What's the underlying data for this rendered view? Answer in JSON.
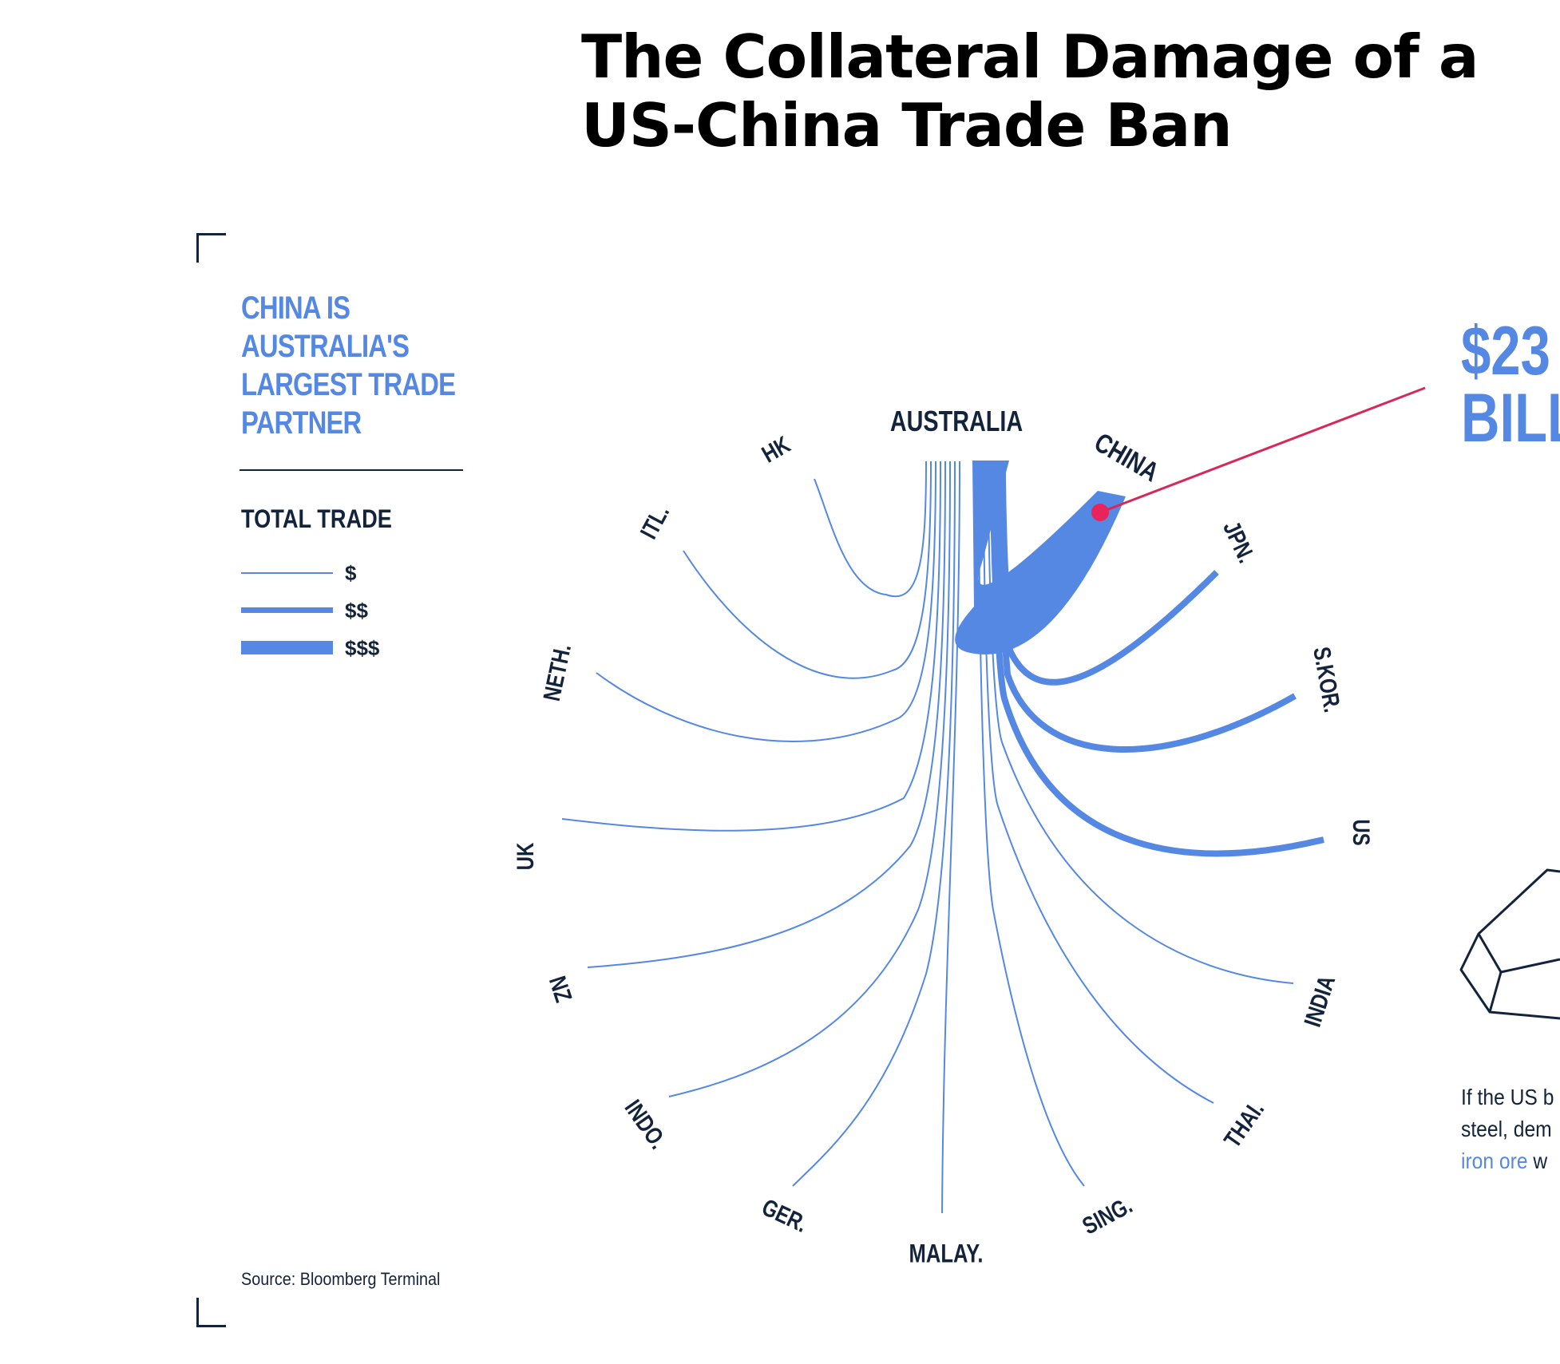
{
  "title": {
    "line1": "The Collateral Damage of a",
    "line2": "US-China Trade Ban"
  },
  "subhead": {
    "line1": "CHINA IS",
    "line2": "AUSTRALIA'S",
    "line3": "LARGEST TRADE",
    "line4": "PARTNER"
  },
  "legend": {
    "title": "TOTAL TRADE",
    "items": [
      {
        "label": "$",
        "level": 1
      },
      {
        "label": "$$",
        "level": 2
      },
      {
        "label": "$$$",
        "level": 3
      }
    ]
  },
  "source": "Source: Bloomberg Terminal",
  "callout": {
    "line1": "$23",
    "line2": "BILL"
  },
  "note": {
    "line1": "If the US b",
    "line2": "steel, dem",
    "highlight": "iron ore",
    "line3_rest": " w"
  },
  "colors": {
    "flow": "#5588e2",
    "text": "#14233c",
    "callout_line": "#d8285a"
  },
  "chart_data": {
    "type": "flow",
    "origin": "AUSTRALIA",
    "scale_note": "Relative total trade volume shown by stroke thickness ($ to $$$)",
    "partners": [
      {
        "name": "CHINA",
        "level": 3
      },
      {
        "name": "JPN.",
        "level": 2
      },
      {
        "name": "S.KOR.",
        "level": 2
      },
      {
        "name": "US",
        "level": 2
      },
      {
        "name": "INDIA",
        "level": 1
      },
      {
        "name": "THAI.",
        "level": 1
      },
      {
        "name": "SING.",
        "level": 1
      },
      {
        "name": "MALAY.",
        "level": 1
      },
      {
        "name": "GER.",
        "level": 1
      },
      {
        "name": "INDO.",
        "level": 1
      },
      {
        "name": "NZ",
        "level": 1
      },
      {
        "name": "UK",
        "level": 1
      },
      {
        "name": "NETH.",
        "level": 1
      },
      {
        "name": "ITL.",
        "level": 1
      },
      {
        "name": "HK",
        "level": 1
      }
    ]
  }
}
